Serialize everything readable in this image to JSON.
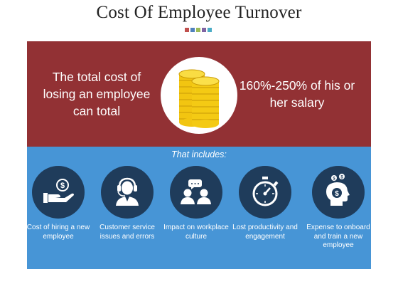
{
  "title": "Cost Of Employee Turnover",
  "decor_colors": [
    "#c0504d",
    "#4f81bd",
    "#9bbb59",
    "#8064a2",
    "#4bacc6"
  ],
  "top_band": {
    "left_text": "The total cost of losing an employee can total",
    "right_text": "160%-250% of his or her salary",
    "center_icon": "coin-stack-icon",
    "background": "#923134"
  },
  "bottom_band": {
    "heading": "That includes:",
    "background": "#4795d6",
    "items": [
      {
        "label": "Cost of hiring a new employee",
        "icon": "hand-dollar-icon"
      },
      {
        "label": "Customer service issues and errors",
        "icon": "headset-agent-icon"
      },
      {
        "label": "Impact on workplace culture",
        "icon": "people-chat-icon"
      },
      {
        "label": "Lost productivity and engagement",
        "icon": "stopwatch-icon"
      },
      {
        "label": "Expense to onboard and train a new employee",
        "icon": "head-dollar-icon"
      }
    ]
  }
}
